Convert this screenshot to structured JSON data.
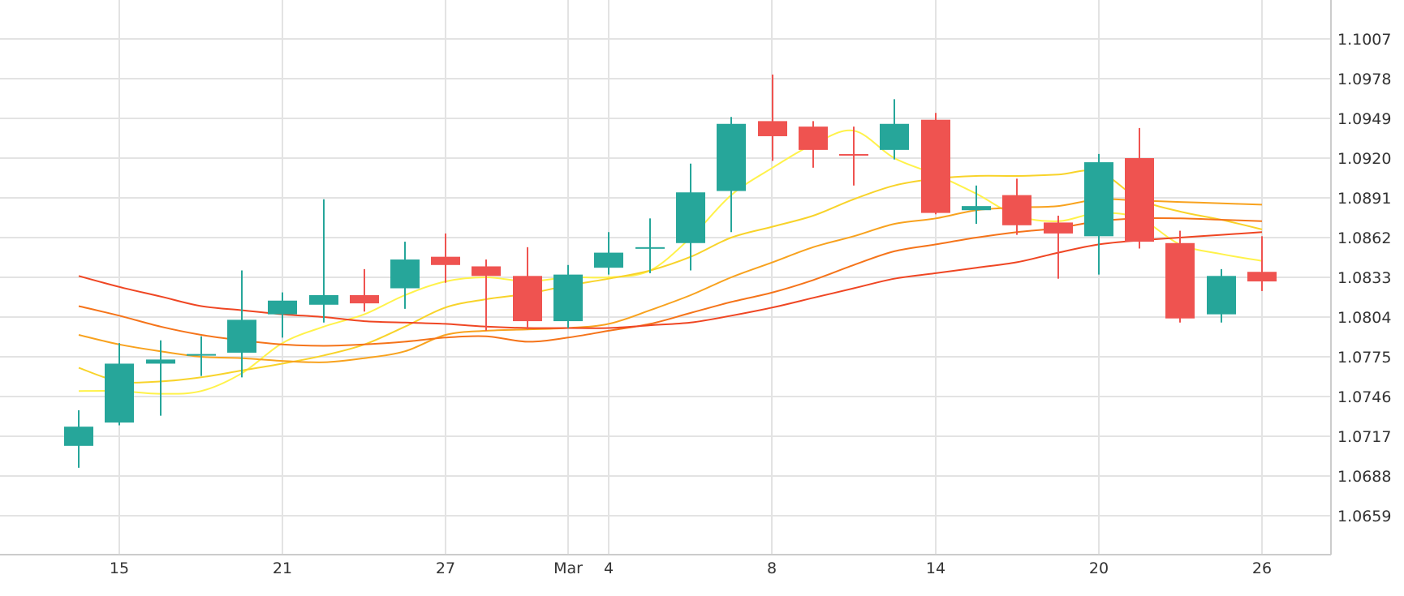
{
  "chart_data": {
    "type": "candlestick",
    "x_tick_labels": [
      "15",
      "21",
      "27",
      "Mar",
      "4",
      "8",
      "14",
      "20",
      "26"
    ],
    "y_tick_labels": [
      "1.1007",
      "1.0978",
      "1.0949",
      "1.0920",
      "1.0891",
      "1.0862",
      "1.0833",
      "1.0804",
      "1.0775",
      "1.0746",
      "1.0717",
      "1.0688",
      "1.0659"
    ],
    "ylim": [
      1.063,
      1.1036
    ],
    "grid": true,
    "candles": [
      {
        "date": "Feb 14",
        "open": 1.071,
        "high": 1.0736,
        "low": 1.0694,
        "close": 1.0724
      },
      {
        "date": "Feb 15",
        "open": 1.0727,
        "high": 1.0785,
        "low": 1.0725,
        "close": 1.077
      },
      {
        "date": "Feb 16",
        "open": 1.077,
        "high": 1.0787,
        "low": 1.0732,
        "close": 1.0773
      },
      {
        "date": "Feb 17",
        "open": 1.0776,
        "high": 1.079,
        "low": 1.0761,
        "close": 1.0777
      },
      {
        "date": "Feb 20",
        "open": 1.0778,
        "high": 1.0838,
        "low": 1.076,
        "close": 1.0802
      },
      {
        "date": "Feb 21",
        "open": 1.0806,
        "high": 1.0822,
        "low": 1.0789,
        "close": 1.0816
      },
      {
        "date": "Feb 22",
        "open": 1.0813,
        "high": 1.089,
        "low": 1.08,
        "close": 1.082
      },
      {
        "date": "Feb 23",
        "open": 1.082,
        "high": 1.0839,
        "low": 1.0808,
        "close": 1.0814
      },
      {
        "date": "Feb 24",
        "open": 1.0825,
        "high": 1.0859,
        "low": 1.081,
        "close": 1.0846
      },
      {
        "date": "Feb 27",
        "open": 1.0848,
        "high": 1.0865,
        "low": 1.0829,
        "close": 1.0842
      },
      {
        "date": "Feb 28",
        "open": 1.0841,
        "high": 1.0846,
        "low": 1.0794,
        "close": 1.0834
      },
      {
        "date": "Mar 1",
        "open": 1.0834,
        "high": 1.0855,
        "low": 1.0795,
        "close": 1.0801
      },
      {
        "date": "Mar 2",
        "open": 1.0801,
        "high": 1.0842,
        "low": 1.0796,
        "close": 1.0835
      },
      {
        "date": "Mar 3",
        "open": 1.084,
        "high": 1.0866,
        "low": 1.0835,
        "close": 1.0851
      },
      {
        "date": "Mar 6",
        "open": 1.0855,
        "high": 1.0876,
        "low": 1.0836,
        "close": 1.0855
      },
      {
        "date": "Mar 7",
        "open": 1.0858,
        "high": 1.0916,
        "low": 1.0838,
        "close": 1.0895
      },
      {
        "date": "Mar 8",
        "open": 1.0896,
        "high": 1.095,
        "low": 1.0866,
        "close": 1.0945
      },
      {
        "date": "Mar 9",
        "open": 1.0947,
        "high": 1.0981,
        "low": 1.0918,
        "close": 1.0936
      },
      {
        "date": "Mar 10",
        "open": 1.0943,
        "high": 1.0947,
        "low": 1.0913,
        "close": 1.0926
      },
      {
        "date": "Mar 13",
        "open": 1.0923,
        "high": 1.0943,
        "low": 1.09,
        "close": 1.0922
      },
      {
        "date": "Mar 14",
        "open": 1.0926,
        "high": 1.0963,
        "low": 1.0919,
        "close": 1.0945
      },
      {
        "date": "Mar 15",
        "open": 1.0948,
        "high": 1.0953,
        "low": 1.0879,
        "close": 1.088
      },
      {
        "date": "Mar 16",
        "open": 1.0882,
        "high": 1.09,
        "low": 1.0872,
        "close": 1.0885
      },
      {
        "date": "Mar 17",
        "open": 1.0893,
        "high": 1.0905,
        "low": 1.0864,
        "close": 1.0871
      },
      {
        "date": "Mar 20",
        "open": 1.0873,
        "high": 1.0878,
        "low": 1.0832,
        "close": 1.0865
      },
      {
        "date": "Mar 21",
        "open": 1.0863,
        "high": 1.0923,
        "low": 1.0835,
        "close": 1.0917
      },
      {
        "date": "Mar 22",
        "open": 1.092,
        "high": 1.0942,
        "low": 1.0854,
        "close": 1.0859
      },
      {
        "date": "Mar 23",
        "open": 1.0858,
        "high": 1.0867,
        "low": 1.08,
        "close": 1.0803
      },
      {
        "date": "Mar 24",
        "open": 1.0806,
        "high": 1.0839,
        "low": 1.08,
        "close": 1.0834
      },
      {
        "date": "Mar 27",
        "open": 1.0837,
        "high": 1.0863,
        "low": 1.0823,
        "close": 1.083
      }
    ],
    "series": [
      {
        "color": "#fff24a",
        "values": [
          1.075,
          1.075,
          1.0748,
          1.075,
          1.0763,
          1.0785,
          1.0797,
          1.0806,
          1.082,
          1.083,
          1.0833,
          1.083,
          1.0833,
          1.0833,
          1.0838,
          1.0862,
          1.0893,
          1.0913,
          1.093,
          1.094,
          1.092,
          1.0908,
          1.0894,
          1.0878,
          1.0874,
          1.088,
          1.0876,
          1.0857,
          1.085,
          1.0845
        ]
      },
      {
        "color": "#f8d32a",
        "values": [
          1.0767,
          1.0757,
          1.0757,
          1.076,
          1.0765,
          1.077,
          1.0776,
          1.0784,
          1.0797,
          1.0811,
          1.0817,
          1.0821,
          1.0827,
          1.0832,
          1.0838,
          1.0848,
          1.0862,
          1.087,
          1.0878,
          1.089,
          1.09,
          1.0905,
          1.0907,
          1.0907,
          1.0908,
          1.091,
          1.089,
          1.0881,
          1.0875,
          1.0868
        ]
      },
      {
        "color": "#f8a21e",
        "values": [
          1.0791,
          1.0784,
          1.0779,
          1.0775,
          1.0774,
          1.0772,
          1.0771,
          1.0774,
          1.0779,
          1.0791,
          1.0794,
          1.0795,
          1.0796,
          1.0799,
          1.0809,
          1.082,
          1.0833,
          1.0844,
          1.0855,
          1.0863,
          1.0872,
          1.0876,
          1.0882,
          1.0884,
          1.0885,
          1.089,
          1.0889,
          1.0888,
          1.0887,
          1.0886
        ]
      },
      {
        "color": "#f5741a",
        "values": [
          1.0812,
          1.0805,
          1.0797,
          1.0791,
          1.0787,
          1.0784,
          1.0783,
          1.0784,
          1.0786,
          1.0789,
          1.079,
          1.0786,
          1.0789,
          1.0794,
          1.0799,
          1.0807,
          1.0815,
          1.0822,
          1.0831,
          1.0842,
          1.0852,
          1.0857,
          1.0862,
          1.0866,
          1.0869,
          1.0874,
          1.0876,
          1.0876,
          1.0875,
          1.0874
        ]
      },
      {
        "color": "#ef4623",
        "values": [
          1.0834,
          1.0826,
          1.0819,
          1.0812,
          1.0809,
          1.0806,
          1.0804,
          1.0801,
          1.08,
          1.0799,
          1.0797,
          1.0796,
          1.0796,
          1.0796,
          1.0798,
          1.08,
          1.0805,
          1.0811,
          1.0818,
          1.0825,
          1.0832,
          1.0836,
          1.084,
          1.0844,
          1.0851,
          1.0857,
          1.086,
          1.0862,
          1.0864,
          1.0866
        ]
      }
    ],
    "colors": {
      "up": "#26a69a",
      "down": "#ef5350",
      "grid": "#e3e3e3",
      "axis": "#cccccc",
      "text": "#333333"
    }
  }
}
